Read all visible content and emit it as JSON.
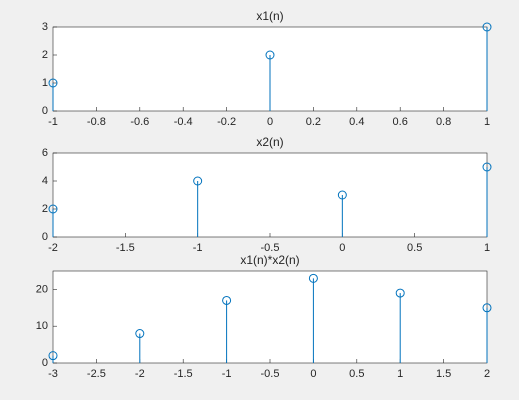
{
  "chart_data": [
    {
      "type": "stem",
      "title": "x1(n)",
      "x": [
        -1,
        0,
        1
      ],
      "values": [
        1,
        2,
        3
      ],
      "color": "#0072bd",
      "xlim": [
        -1,
        1
      ],
      "xticks": [
        -1,
        -0.8,
        -0.6,
        -0.4,
        -0.2,
        0,
        0.2,
        0.4,
        0.6,
        0.8,
        1
      ],
      "ylim": [
        0,
        3
      ],
      "yticks": [
        0,
        1,
        2,
        3
      ]
    },
    {
      "type": "stem",
      "title": "x2(n)",
      "x": [
        -2,
        -1,
        0,
        1
      ],
      "values": [
        2,
        4,
        3,
        5
      ],
      "color": "#0072bd",
      "xlim": [
        -2,
        1
      ],
      "xticks": [
        -2,
        -1.5,
        -1,
        -0.5,
        0,
        0.5,
        1
      ],
      "ylim": [
        0,
        6
      ],
      "yticks": [
        0,
        2,
        4,
        6
      ]
    },
    {
      "type": "stem",
      "title": "x1(n)*x2(n)",
      "x": [
        -3,
        -2,
        -1,
        0,
        1,
        2
      ],
      "values": [
        2,
        8,
        17,
        23,
        19,
        15
      ],
      "color": "#0072bd",
      "xlim": [
        -3,
        2
      ],
      "xticks": [
        -3,
        -2.5,
        -2,
        -1.5,
        -1,
        -0.5,
        0,
        0.5,
        1,
        1.5,
        2
      ],
      "ylim": [
        0,
        25
      ],
      "yticks": [
        0,
        10,
        20
      ]
    }
  ]
}
